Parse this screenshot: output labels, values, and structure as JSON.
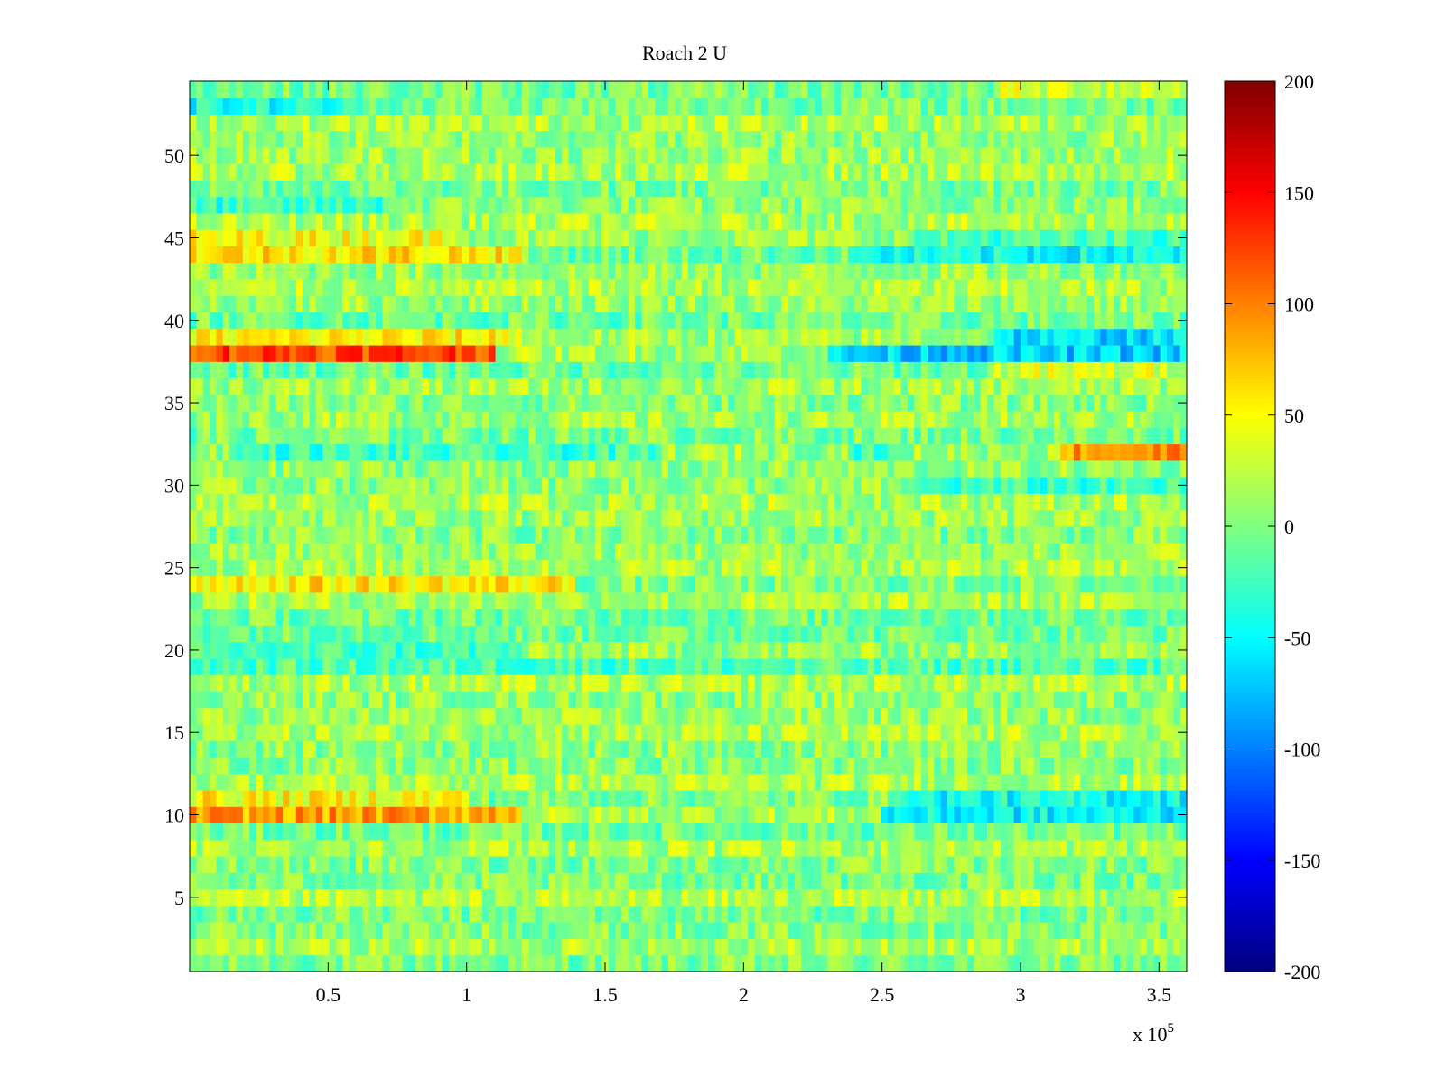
{
  "chart_data": {
    "type": "heatmap",
    "title": "Roach 2 U",
    "xlabel": "",
    "ylabel": "",
    "x_multiplier_label": "x 10",
    "x_multiplier_exponent": "5",
    "xlim": [
      0,
      3.6
    ],
    "ylim": [
      0.5,
      54.5
    ],
    "x_ticks": [
      0.5,
      1,
      1.5,
      2,
      2.5,
      3,
      3.5
    ],
    "x_tick_labels": [
      "0.5",
      "1",
      "1.5",
      "2",
      "2.5",
      "3",
      "3.5"
    ],
    "y_ticks": [
      5,
      10,
      15,
      20,
      25,
      30,
      35,
      40,
      45,
      50
    ],
    "y_tick_labels": [
      "5",
      "10",
      "15",
      "20",
      "25",
      "30",
      "35",
      "40",
      "45",
      "50"
    ],
    "rows": 54,
    "colormap": "jet",
    "colorbar": {
      "range": [
        -200,
        200
      ],
      "ticks": [
        200,
        150,
        100,
        50,
        0,
        -50,
        -100,
        -150,
        -200
      ],
      "tick_labels": [
        "200",
        "150",
        "100",
        "50",
        "0",
        "-50",
        "-100",
        "-150",
        "-200"
      ]
    },
    "base_level": 5,
    "row_offsets": [
      {
        "row": 1,
        "x_range": [
          0,
          3.6
        ],
        "value": -20
      },
      {
        "row": 10,
        "x_range": [
          0,
          1.2
        ],
        "value": 70
      },
      {
        "row": 10,
        "x_range": [
          2.5,
          3.6
        ],
        "value": -70
      },
      {
        "row": 11,
        "x_range": [
          0,
          1.0
        ],
        "value": 50
      },
      {
        "row": 11,
        "x_range": [
          2.6,
          3.6
        ],
        "value": -45
      },
      {
        "row": 19,
        "x_range": [
          0,
          3.6
        ],
        "value": -25
      },
      {
        "row": 20,
        "x_range": [
          0,
          1.2
        ],
        "value": -35
      },
      {
        "row": 24,
        "x_range": [
          0,
          1.4
        ],
        "value": 60
      },
      {
        "row": 30,
        "x_range": [
          2.6,
          3.6
        ],
        "value": -35
      },
      {
        "row": 32,
        "x_range": [
          0.15,
          1.7
        ],
        "value": -40
      },
      {
        "row": 32,
        "x_range": [
          2.4,
          2.6
        ],
        "value": -40
      },
      {
        "row": 32,
        "x_range": [
          3.15,
          3.6
        ],
        "value": 80
      },
      {
        "row": 37,
        "x_range": [
          2.9,
          3.6
        ],
        "value": 40
      },
      {
        "row": 38,
        "x_range": [
          0,
          1.1
        ],
        "value": 110
      },
      {
        "row": 38,
        "x_range": [
          2.3,
          3.6
        ],
        "value": -85
      },
      {
        "row": 39,
        "x_range": [
          0,
          1.2
        ],
        "value": 40
      },
      {
        "row": 39,
        "x_range": [
          2.9,
          3.6
        ],
        "value": -75
      },
      {
        "row": 44,
        "x_range": [
          0,
          1.2
        ],
        "value": 70
      },
      {
        "row": 44,
        "x_range": [
          2.4,
          3.6
        ],
        "value": -40
      },
      {
        "row": 45,
        "x_range": [
          0,
          1.0
        ],
        "value": 35
      },
      {
        "row": 45,
        "x_range": [
          2.6,
          3.6
        ],
        "value": -35
      },
      {
        "row": 47,
        "x_range": [
          0,
          0.7
        ],
        "value": -35
      },
      {
        "row": 53,
        "x_range": [
          0,
          0.6
        ],
        "value": -40
      },
      {
        "row": 54,
        "x_range": [
          2.9,
          3.6
        ],
        "value": 35
      }
    ]
  }
}
